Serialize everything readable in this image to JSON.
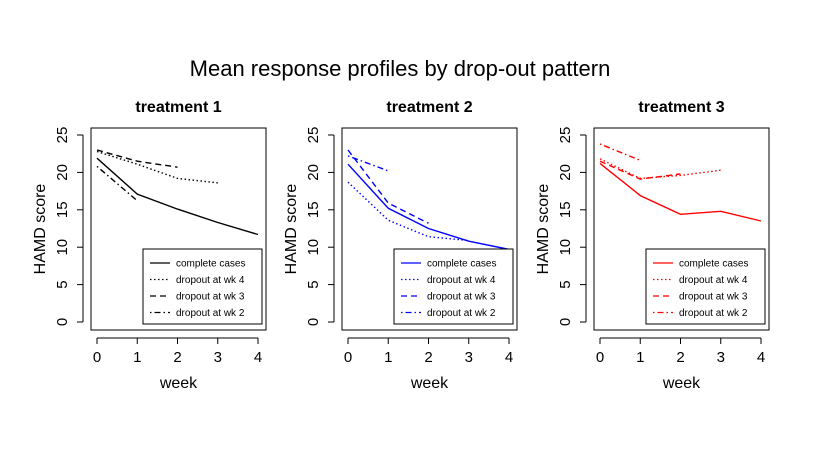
{
  "figure": {
    "title": "Mean response profiles by drop-out pattern"
  },
  "chart_data": [
    {
      "type": "line",
      "title": "treatment  1",
      "xlabel": "week",
      "ylabel": "HAMD score",
      "xlim": [
        0,
        4
      ],
      "ylim": [
        0,
        25
      ],
      "x_ticks": [
        "0",
        "1",
        "2",
        "3",
        "4"
      ],
      "y_ticks": [
        "0",
        "5",
        "10",
        "15",
        "20",
        "25"
      ],
      "color": "#000000",
      "legend_position": "bottom-right",
      "series": [
        {
          "name": "complete cases",
          "dash": "solid",
          "x": [
            0,
            1,
            2,
            3,
            4
          ],
          "y": [
            21.9,
            17.1,
            15.1,
            13.3,
            11.7
          ]
        },
        {
          "name": "dropout at wk 4",
          "dash": "dotted",
          "x": [
            0,
            1,
            2,
            3
          ],
          "y": [
            22.8,
            21.1,
            19.2,
            18.6
          ]
        },
        {
          "name": "dropout at wk 3",
          "dash": "dashed",
          "x": [
            0,
            1,
            2
          ],
          "y": [
            23.0,
            21.5,
            20.7
          ]
        },
        {
          "name": "dropout at wk 2",
          "dash": "dotdash",
          "x": [
            0,
            1
          ],
          "y": [
            20.8,
            16.2
          ]
        }
      ]
    },
    {
      "type": "line",
      "title": "treatment  2",
      "xlabel": "week",
      "ylabel": "HAMD score",
      "xlim": [
        0,
        4
      ],
      "ylim": [
        0,
        25
      ],
      "x_ticks": [
        "0",
        "1",
        "2",
        "3",
        "4"
      ],
      "y_ticks": [
        "0",
        "5",
        "10",
        "15",
        "20",
        "25"
      ],
      "color": "#0000ff",
      "legend_position": "bottom-right",
      "series": [
        {
          "name": "complete cases",
          "dash": "solid",
          "x": [
            0,
            1,
            2,
            3,
            4
          ],
          "y": [
            21.1,
            15.2,
            12.5,
            10.8,
            9.7
          ]
        },
        {
          "name": "dropout at wk 4",
          "dash": "dotted",
          "x": [
            0,
            1,
            2,
            3
          ],
          "y": [
            18.7,
            13.6,
            11.4,
            10.9
          ]
        },
        {
          "name": "dropout at wk 3",
          "dash": "dashed",
          "x": [
            0,
            1,
            2
          ],
          "y": [
            23.0,
            15.9,
            13.2
          ]
        },
        {
          "name": "dropout at wk 2",
          "dash": "dotdash",
          "x": [
            0,
            1
          ],
          "y": [
            22.2,
            20.2
          ]
        }
      ]
    },
    {
      "type": "line",
      "title": "treatment  3",
      "xlabel": "week",
      "ylabel": "HAMD score",
      "xlim": [
        0,
        4
      ],
      "ylim": [
        0,
        25
      ],
      "x_ticks": [
        "0",
        "1",
        "2",
        "3",
        "4"
      ],
      "y_ticks": [
        "0",
        "5",
        "10",
        "15",
        "20",
        "25"
      ],
      "color": "#ff0000",
      "legend_position": "bottom-right",
      "series": [
        {
          "name": "complete cases",
          "dash": "solid",
          "x": [
            0,
            1,
            2,
            3,
            4
          ],
          "y": [
            21.2,
            16.9,
            14.4,
            14.8,
            13.5
          ]
        },
        {
          "name": "dropout at wk 4",
          "dash": "dotted",
          "x": [
            0,
            1,
            2,
            3
          ],
          "y": [
            21.8,
            19.2,
            19.6,
            20.3
          ]
        },
        {
          "name": "dropout at wk 3",
          "dash": "dashed",
          "x": [
            0,
            1,
            2
          ],
          "y": [
            21.5,
            19.1,
            19.8
          ]
        },
        {
          "name": "dropout at wk 2",
          "dash": "dotdash",
          "x": [
            0,
            1
          ],
          "y": [
            23.8,
            21.6
          ]
        }
      ]
    }
  ]
}
